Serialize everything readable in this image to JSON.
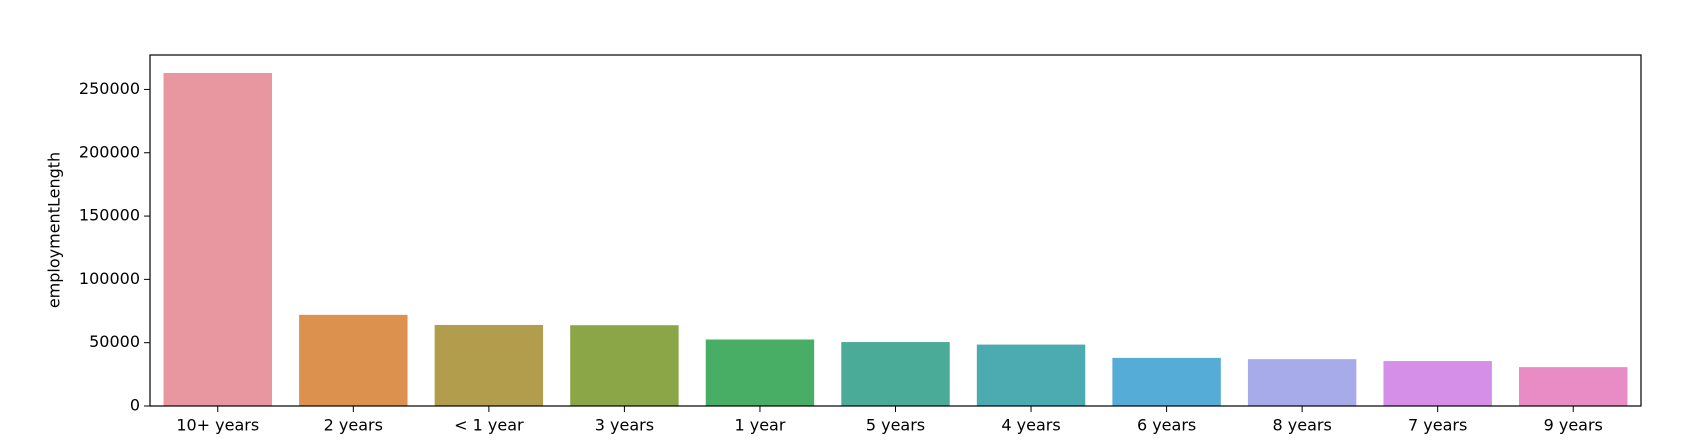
{
  "chart_data": {
    "type": "bar",
    "ylabel": "employmentLength",
    "categories": [
      "10+ years",
      "2 years",
      "< 1 year",
      "3 years",
      "1 year",
      "5 years",
      "4 years",
      "6 years",
      "8 years",
      "7 years",
      "9 years"
    ],
    "values": [
      263000,
      72000,
      64000,
      63800,
      52500,
      50500,
      48500,
      38000,
      37000,
      35500,
      30700
    ],
    "colors": [
      "#e8969f",
      "#dd914f",
      "#b19d4b",
      "#8ba646",
      "#48ae66",
      "#4aab99",
      "#4cabb0",
      "#55acd6",
      "#a8abea",
      "#d68fe8",
      "#e98cc6"
    ],
    "ylim": [
      0,
      277200
    ],
    "yticks": [
      0,
      50000,
      100000,
      150000,
      200000,
      250000
    ]
  }
}
